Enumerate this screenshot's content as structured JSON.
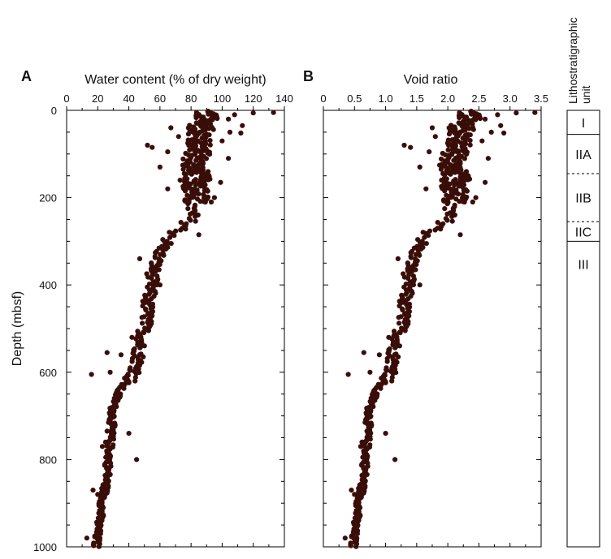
{
  "chart_data": [
    {
      "type": "scatter",
      "panel": "A",
      "xlabel": "Water content (% of dry weight)",
      "ylabel": "Depth (mbsf)",
      "xlim": [
        0,
        140
      ],
      "ylim": [
        1000,
        0
      ],
      "x_ticks": [
        "0",
        "20",
        "40",
        "60",
        "80",
        "100",
        "120",
        "140"
      ],
      "y_ticks": [
        "0",
        "200",
        "400",
        "600",
        "800",
        "1000"
      ],
      "trend": [
        [
          0,
          88
        ],
        [
          10,
          90
        ],
        [
          25,
          88
        ],
        [
          45,
          86
        ],
        [
          60,
          87
        ],
        [
          70,
          84
        ],
        [
          85,
          86
        ],
        [
          100,
          84
        ],
        [
          110,
          83
        ],
        [
          125,
          82
        ],
        [
          140,
          83
        ],
        [
          160,
          84
        ],
        [
          175,
          83
        ],
        [
          190,
          84
        ],
        [
          200,
          83
        ],
        [
          220,
          80
        ],
        [
          240,
          80
        ],
        [
          260,
          78
        ],
        [
          280,
          70
        ],
        [
          300,
          65
        ],
        [
          320,
          61
        ],
        [
          350,
          57
        ],
        [
          380,
          55
        ],
        [
          410,
          54
        ],
        [
          440,
          52
        ],
        [
          470,
          52
        ],
        [
          500,
          50
        ],
        [
          540,
          47
        ],
        [
          570,
          46
        ],
        [
          600,
          44
        ],
        [
          640,
          34
        ],
        [
          680,
          30
        ],
        [
          720,
          29
        ],
        [
          760,
          28
        ],
        [
          800,
          27
        ],
        [
          840,
          26
        ],
        [
          880,
          24
        ],
        [
          920,
          22
        ],
        [
          960,
          20
        ],
        [
          1000,
          19
        ]
      ],
      "outliers": [
        [
          5,
          133
        ],
        [
          6,
          120
        ],
        [
          10,
          108
        ],
        [
          20,
          104
        ],
        [
          35,
          113
        ],
        [
          40,
          67
        ],
        [
          50,
          105
        ],
        [
          52,
          112
        ],
        [
          60,
          72
        ],
        [
          70,
          100
        ],
        [
          80,
          52
        ],
        [
          85,
          55
        ],
        [
          95,
          65
        ],
        [
          110,
          104
        ],
        [
          130,
          60
        ],
        [
          160,
          73
        ],
        [
          165,
          99
        ],
        [
          180,
          65
        ],
        [
          200,
          95
        ],
        [
          210,
          93
        ],
        [
          225,
          78
        ],
        [
          285,
          85
        ],
        [
          340,
          47
        ],
        [
          400,
          60
        ],
        [
          520,
          42
        ],
        [
          555,
          26
        ],
        [
          560,
          35
        ],
        [
          600,
          28
        ],
        [
          605,
          16
        ],
        [
          620,
          44
        ],
        [
          735,
          26
        ],
        [
          740,
          40
        ],
        [
          760,
          25
        ],
        [
          770,
          23
        ],
        [
          800,
          45
        ],
        [
          870,
          17
        ],
        [
          880,
          20
        ],
        [
          980,
          13
        ]
      ]
    },
    {
      "type": "scatter",
      "panel": "B",
      "xlabel": "Void ratio",
      "ylabel": "",
      "xlim": [
        0,
        3.5
      ],
      "ylim": [
        1000,
        0
      ],
      "x_ticks": [
        "0",
        "0.5",
        "1.0",
        "1.5",
        "2.0",
        "2.5",
        "3.0",
        "3.5"
      ],
      "y_ticks": [],
      "trend": [
        [
          0,
          2.3
        ],
        [
          10,
          2.35
        ],
        [
          25,
          2.3
        ],
        [
          45,
          2.2
        ],
        [
          60,
          2.25
        ],
        [
          70,
          2.15
        ],
        [
          85,
          2.2
        ],
        [
          100,
          2.1
        ],
        [
          110,
          2.1
        ],
        [
          125,
          2.05
        ],
        [
          140,
          2.1
        ],
        [
          160,
          2.15
        ],
        [
          175,
          2.1
        ],
        [
          190,
          2.15
        ],
        [
          200,
          2.1
        ],
        [
          220,
          2.05
        ],
        [
          240,
          2.0
        ],
        [
          260,
          1.95
        ],
        [
          280,
          1.7
        ],
        [
          300,
          1.6
        ],
        [
          320,
          1.5
        ],
        [
          350,
          1.42
        ],
        [
          380,
          1.37
        ],
        [
          410,
          1.35
        ],
        [
          440,
          1.3
        ],
        [
          470,
          1.3
        ],
        [
          500,
          1.25
        ],
        [
          540,
          1.15
        ],
        [
          570,
          1.12
        ],
        [
          600,
          1.1
        ],
        [
          640,
          0.85
        ],
        [
          680,
          0.75
        ],
        [
          720,
          0.72
        ],
        [
          760,
          0.7
        ],
        [
          800,
          0.68
        ],
        [
          840,
          0.65
        ],
        [
          880,
          0.6
        ],
        [
          920,
          0.55
        ],
        [
          960,
          0.5
        ],
        [
          1000,
          0.48
        ]
      ],
      "outliers": [
        [
          5,
          3.4
        ],
        [
          6,
          3.1
        ],
        [
          10,
          2.8
        ],
        [
          20,
          2.6
        ],
        [
          35,
          2.85
        ],
        [
          40,
          1.75
        ],
        [
          50,
          2.7
        ],
        [
          52,
          2.9
        ],
        [
          60,
          1.8
        ],
        [
          70,
          2.55
        ],
        [
          80,
          1.3
        ],
        [
          85,
          1.4
        ],
        [
          95,
          1.7
        ],
        [
          110,
          2.65
        ],
        [
          130,
          1.55
        ],
        [
          160,
          1.9
        ],
        [
          165,
          2.6
        ],
        [
          180,
          1.65
        ],
        [
          200,
          2.45
        ],
        [
          210,
          2.4
        ],
        [
          225,
          1.95
        ],
        [
          285,
          2.2
        ],
        [
          340,
          1.2
        ],
        [
          400,
          1.55
        ],
        [
          520,
          1.05
        ],
        [
          555,
          0.65
        ],
        [
          560,
          0.9
        ],
        [
          600,
          0.75
        ],
        [
          605,
          0.4
        ],
        [
          620,
          1.1
        ],
        [
          735,
          0.7
        ],
        [
          740,
          1.0
        ],
        [
          760,
          0.62
        ],
        [
          770,
          0.6
        ],
        [
          800,
          1.15
        ],
        [
          870,
          0.45
        ],
        [
          880,
          0.5
        ],
        [
          980,
          0.35
        ]
      ]
    }
  ],
  "lithology": {
    "title_line1": "Lithostratigraphic",
    "title_line2": "unit",
    "units": [
      {
        "label": "I",
        "top": 0,
        "bottom": 55,
        "lower_boundary": "solid"
      },
      {
        "label": "IIA",
        "top": 55,
        "bottom": 145,
        "lower_boundary": "dashed"
      },
      {
        "label": "IIB",
        "top": 145,
        "bottom": 255,
        "lower_boundary": "dashed"
      },
      {
        "label": "IIC",
        "top": 255,
        "bottom": 300,
        "lower_boundary": "solid"
      },
      {
        "label": "III",
        "top": 300,
        "bottom": 1000,
        "lower_boundary": "none"
      }
    ]
  }
}
